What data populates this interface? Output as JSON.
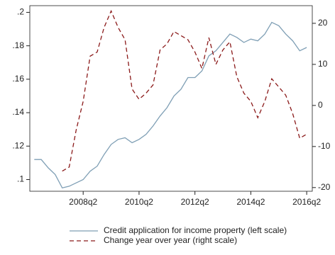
{
  "chart_data": {
    "type": "line",
    "x": [
      2006.5,
      2006.75,
      2007.0,
      2007.25,
      2007.5,
      2007.75,
      2008.0,
      2008.25,
      2008.5,
      2008.75,
      2009.0,
      2009.25,
      2009.5,
      2009.75,
      2010.0,
      2010.25,
      2010.5,
      2010.75,
      2011.0,
      2011.25,
      2011.5,
      2011.75,
      2012.0,
      2012.25,
      2012.5,
      2012.75,
      2013.0,
      2013.25,
      2013.5,
      2013.75,
      2014.0,
      2014.25,
      2014.5,
      2014.75,
      2015.0,
      2015.25,
      2015.5,
      2015.75,
      2016.0,
      2016.25
    ],
    "series": [
      {
        "name": "Credit application for income property (left scale)",
        "color": "#7f9fb5",
        "dash": "none",
        "values": [
          0.112,
          0.112,
          0.107,
          0.103,
          0.095,
          0.096,
          0.098,
          0.1,
          0.105,
          0.108,
          0.115,
          0.121,
          0.124,
          0.125,
          0.122,
          0.124,
          0.127,
          0.132,
          0.138,
          0.143,
          0.15,
          0.154,
          0.161,
          0.161,
          0.165,
          0.174,
          0.177,
          0.182,
          0.187,
          0.185,
          0.182,
          0.184,
          0.183,
          0.187,
          0.194,
          0.192,
          0.187,
          0.183,
          0.177,
          0.179
        ]
      },
      {
        "name": "Change year over year (right scale)",
        "color": "#8b1a1a",
        "dash": "6,4",
        "axis": "y2",
        "values": [
          null,
          null,
          null,
          null,
          -16,
          -15,
          -6,
          1,
          12,
          13,
          19,
          23,
          19,
          16,
          4,
          1.5,
          3,
          5,
          13.5,
          15,
          18,
          17,
          16,
          13,
          9,
          16.5,
          10,
          13.5,
          15.5,
          7,
          3,
          1,
          -3,
          1,
          6.5,
          4.5,
          2.5,
          -2,
          -8,
          -7
        ]
      }
    ],
    "xlim": [
      2006.34,
      2016.45
    ],
    "xticks": [
      {
        "value": 2008.25,
        "label": "2008q2"
      },
      {
        "value": 2010.25,
        "label": "2010q2"
      },
      {
        "value": 2012.25,
        "label": "2012q2"
      },
      {
        "value": 2014.25,
        "label": "2014q2"
      },
      {
        "value": 2016.25,
        "label": "2016q2"
      }
    ],
    "ylim": [
      0.093,
      0.204
    ],
    "yticks": [
      {
        "value": 0.1,
        "label": ".1"
      },
      {
        "value": 0.12,
        "label": ".12"
      },
      {
        "value": 0.14,
        "label": ".14"
      },
      {
        "value": 0.16,
        "label": ".16"
      },
      {
        "value": 0.18,
        "label": ".18"
      },
      {
        "value": 0.2,
        "label": ".2"
      }
    ],
    "y2lim": [
      -20.9,
      24.3
    ],
    "y2ticks": [
      -20,
      -10,
      0,
      10,
      20
    ]
  }
}
